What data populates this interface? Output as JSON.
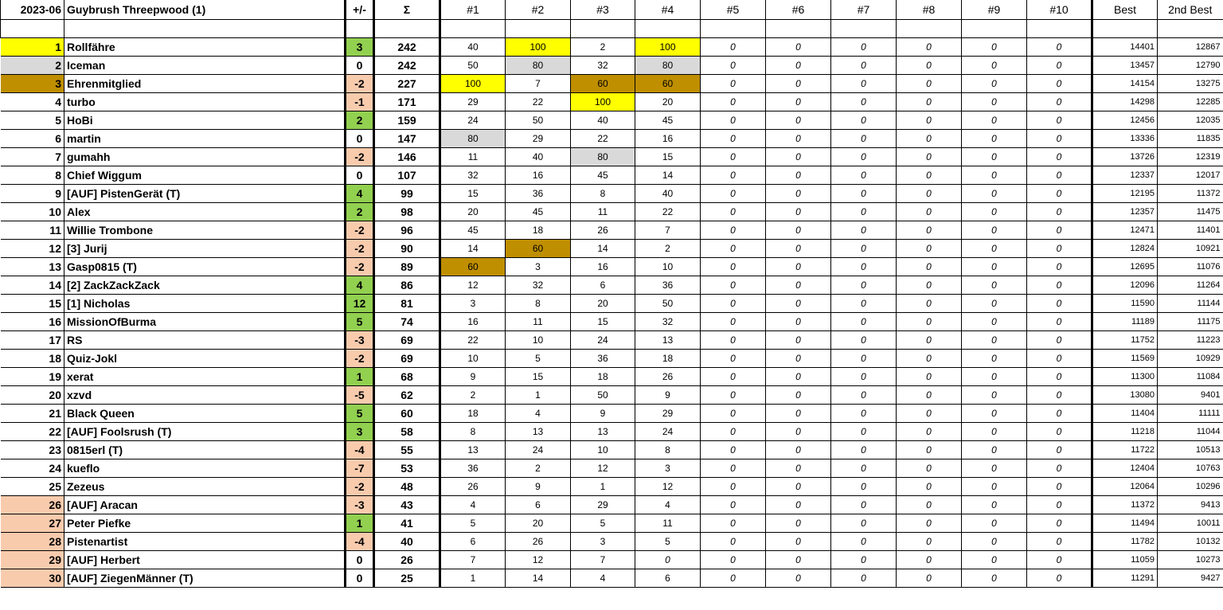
{
  "header": {
    "period": "2023-06",
    "title": "Guybrush Threepwood (1)",
    "delta": "+/-",
    "sum": "Σ",
    "rounds": [
      "#1",
      "#2",
      "#3",
      "#4",
      "#5",
      "#6",
      "#7",
      "#8",
      "#9",
      "#10"
    ],
    "best": "Best",
    "second_best": "2nd Best"
  },
  "colors": {
    "gold_first": "#ffff00",
    "silver_second": "#d9d9d9",
    "bronze_third": "#bf8f00",
    "positive": "#92d050",
    "negative": "#f8cbad",
    "relegation": "#f8cbad"
  },
  "rows": [
    {
      "rank": "1",
      "name": "Rollfähre",
      "delta": "3",
      "sum": "242",
      "scores": [
        "40",
        "100",
        "2",
        "100",
        "0",
        "0",
        "0",
        "0",
        "0",
        "0"
      ],
      "best": "14401",
      "second": "12867"
    },
    {
      "rank": "2",
      "name": "Iceman",
      "delta": "0",
      "sum": "242",
      "scores": [
        "50",
        "80",
        "32",
        "80",
        "0",
        "0",
        "0",
        "0",
        "0",
        "0"
      ],
      "best": "13457",
      "second": "12790"
    },
    {
      "rank": "3",
      "name": "Ehrenmitglied",
      "delta": "-2",
      "sum": "227",
      "scores": [
        "100",
        "7",
        "60",
        "60",
        "0",
        "0",
        "0",
        "0",
        "0",
        "0"
      ],
      "best": "14154",
      "second": "13275"
    },
    {
      "rank": "4",
      "name": "turbo",
      "delta": "-1",
      "sum": "171",
      "scores": [
        "29",
        "22",
        "100",
        "20",
        "0",
        "0",
        "0",
        "0",
        "0",
        "0"
      ],
      "best": "14298",
      "second": "12285"
    },
    {
      "rank": "5",
      "name": "HoBi",
      "delta": "2",
      "sum": "159",
      "scores": [
        "24",
        "50",
        "40",
        "45",
        "0",
        "0",
        "0",
        "0",
        "0",
        "0"
      ],
      "best": "12456",
      "second": "12035"
    },
    {
      "rank": "6",
      "name": "martin",
      "delta": "0",
      "sum": "147",
      "scores": [
        "80",
        "29",
        "22",
        "16",
        "0",
        "0",
        "0",
        "0",
        "0",
        "0"
      ],
      "best": "13336",
      "second": "11835"
    },
    {
      "rank": "7",
      "name": "gumahh",
      "delta": "-2",
      "sum": "146",
      "scores": [
        "11",
        "40",
        "80",
        "15",
        "0",
        "0",
        "0",
        "0",
        "0",
        "0"
      ],
      "best": "13726",
      "second": "12319"
    },
    {
      "rank": "8",
      "name": "Chief Wiggum",
      "delta": "0",
      "sum": "107",
      "scores": [
        "32",
        "16",
        "45",
        "14",
        "0",
        "0",
        "0",
        "0",
        "0",
        "0"
      ],
      "best": "12337",
      "second": "12017"
    },
    {
      "rank": "9",
      "name": "[AUF] PistenGerät (T)",
      "delta": "4",
      "sum": "99",
      "scores": [
        "15",
        "36",
        "8",
        "40",
        "0",
        "0",
        "0",
        "0",
        "0",
        "0"
      ],
      "best": "12195",
      "second": "11372"
    },
    {
      "rank": "10",
      "name": "Alex",
      "delta": "2",
      "sum": "98",
      "scores": [
        "20",
        "45",
        "11",
        "22",
        "0",
        "0",
        "0",
        "0",
        "0",
        "0"
      ],
      "best": "12357",
      "second": "11475"
    },
    {
      "rank": "11",
      "name": "Willie Trombone",
      "delta": "-2",
      "sum": "96",
      "scores": [
        "45",
        "18",
        "26",
        "7",
        "0",
        "0",
        "0",
        "0",
        "0",
        "0"
      ],
      "best": "12471",
      "second": "11401"
    },
    {
      "rank": "12",
      "name": "[3] Jurij",
      "delta": "-2",
      "sum": "90",
      "scores": [
        "14",
        "60",
        "14",
        "2",
        "0",
        "0",
        "0",
        "0",
        "0",
        "0"
      ],
      "best": "12824",
      "second": "10921"
    },
    {
      "rank": "13",
      "name": "Gasp0815 (T)",
      "delta": "-2",
      "sum": "89",
      "scores": [
        "60",
        "3",
        "16",
        "10",
        "0",
        "0",
        "0",
        "0",
        "0",
        "0"
      ],
      "best": "12695",
      "second": "11076"
    },
    {
      "rank": "14",
      "name": "[2] ZackZackZack",
      "delta": "4",
      "sum": "86",
      "scores": [
        "12",
        "32",
        "6",
        "36",
        "0",
        "0",
        "0",
        "0",
        "0",
        "0"
      ],
      "best": "12096",
      "second": "11264"
    },
    {
      "rank": "15",
      "name": "[1] Nicholas",
      "delta": "12",
      "sum": "81",
      "scores": [
        "3",
        "8",
        "20",
        "50",
        "0",
        "0",
        "0",
        "0",
        "0",
        "0"
      ],
      "best": "11590",
      "second": "11144"
    },
    {
      "rank": "16",
      "name": "MissionOfBurma",
      "delta": "5",
      "sum": "74",
      "scores": [
        "16",
        "11",
        "15",
        "32",
        "0",
        "0",
        "0",
        "0",
        "0",
        "0"
      ],
      "best": "11189",
      "second": "11175"
    },
    {
      "rank": "17",
      "name": "RS",
      "delta": "-3",
      "sum": "69",
      "scores": [
        "22",
        "10",
        "24",
        "13",
        "0",
        "0",
        "0",
        "0",
        "0",
        "0"
      ],
      "best": "11752",
      "second": "11223"
    },
    {
      "rank": "18",
      "name": "Quiz-Jokl",
      "delta": "-2",
      "sum": "69",
      "scores": [
        "10",
        "5",
        "36",
        "18",
        "0",
        "0",
        "0",
        "0",
        "0",
        "0"
      ],
      "best": "11569",
      "second": "10929"
    },
    {
      "rank": "19",
      "name": "xerat",
      "delta": "1",
      "sum": "68",
      "scores": [
        "9",
        "15",
        "18",
        "26",
        "0",
        "0",
        "0",
        "0",
        "0",
        "0"
      ],
      "best": "11300",
      "second": "11084"
    },
    {
      "rank": "20",
      "name": "xzvd",
      "delta": "-5",
      "sum": "62",
      "scores": [
        "2",
        "1",
        "50",
        "9",
        "0",
        "0",
        "0",
        "0",
        "0",
        "0"
      ],
      "best": "13080",
      "second": "9401"
    },
    {
      "rank": "21",
      "name": "Black Queen",
      "delta": "5",
      "sum": "60",
      "scores": [
        "18",
        "4",
        "9",
        "29",
        "0",
        "0",
        "0",
        "0",
        "0",
        "0"
      ],
      "best": "11404",
      "second": "11111"
    },
    {
      "rank": "22",
      "name": "[AUF] Foolsrush (T)",
      "delta": "3",
      "sum": "58",
      "scores": [
        "8",
        "13",
        "13",
        "24",
        "0",
        "0",
        "0",
        "0",
        "0",
        "0"
      ],
      "best": "11218",
      "second": "11044"
    },
    {
      "rank": "23",
      "name": "0815erl (T)",
      "delta": "-4",
      "sum": "55",
      "scores": [
        "13",
        "24",
        "10",
        "8",
        "0",
        "0",
        "0",
        "0",
        "0",
        "0"
      ],
      "best": "11722",
      "second": "10513"
    },
    {
      "rank": "24",
      "name": "kueflo",
      "delta": "-7",
      "sum": "53",
      "scores": [
        "36",
        "2",
        "12",
        "3",
        "0",
        "0",
        "0",
        "0",
        "0",
        "0"
      ],
      "best": "12404",
      "second": "10763"
    },
    {
      "rank": "25",
      "name": "Zezeus",
      "delta": "-2",
      "sum": "48",
      "scores": [
        "26",
        "9",
        "1",
        "12",
        "0",
        "0",
        "0",
        "0",
        "0",
        "0"
      ],
      "best": "12064",
      "second": "10296"
    },
    {
      "rank": "26",
      "name": "[AUF] Aracan",
      "delta": "-3",
      "sum": "43",
      "scores": [
        "4",
        "6",
        "29",
        "4",
        "0",
        "0",
        "0",
        "0",
        "0",
        "0"
      ],
      "best": "11372",
      "second": "9413"
    },
    {
      "rank": "27",
      "name": "Peter Piefke",
      "delta": "1",
      "sum": "41",
      "scores": [
        "5",
        "20",
        "5",
        "11",
        "0",
        "0",
        "0",
        "0",
        "0",
        "0"
      ],
      "best": "11494",
      "second": "10011"
    },
    {
      "rank": "28",
      "name": "Pistenartist",
      "delta": "-4",
      "sum": "40",
      "scores": [
        "6",
        "26",
        "3",
        "5",
        "0",
        "0",
        "0",
        "0",
        "0",
        "0"
      ],
      "best": "11782",
      "second": "10132"
    },
    {
      "rank": "29",
      "name": "[AUF] Herbert",
      "delta": "0",
      "sum": "26",
      "scores": [
        "7",
        "12",
        "7",
        "0",
        "0",
        "0",
        "0",
        "0",
        "0",
        "0"
      ],
      "best": "11059",
      "second": "10273"
    },
    {
      "rank": "30",
      "name": "[AUF] ZiegenMänner (T)",
      "delta": "0",
      "sum": "25",
      "scores": [
        "1",
        "14",
        "4",
        "6",
        "0",
        "0",
        "0",
        "0",
        "0",
        "0"
      ],
      "best": "11291",
      "second": "9427"
    }
  ]
}
